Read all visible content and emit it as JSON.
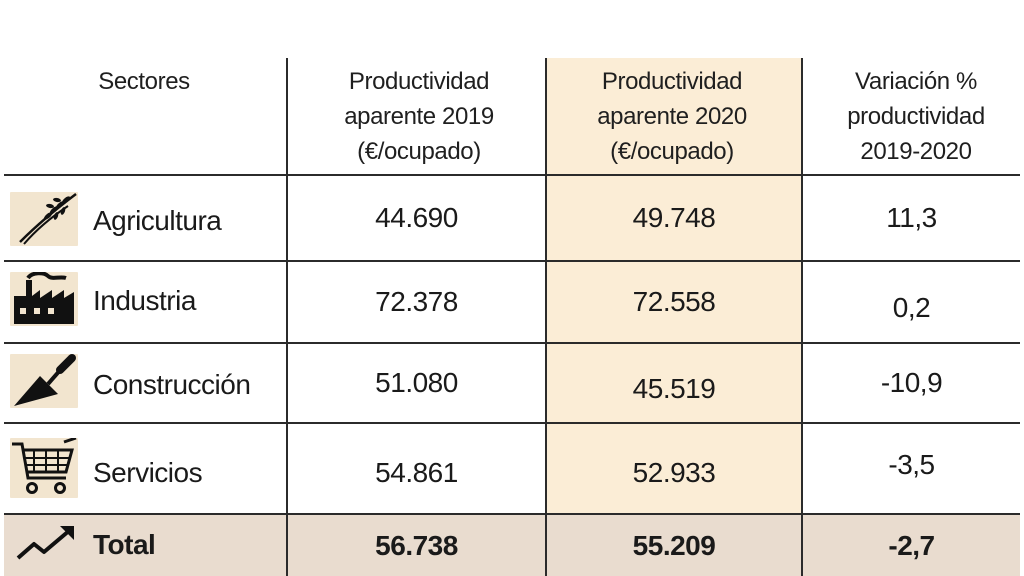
{
  "chart_data": {
    "type": "table",
    "columns": [
      "Sectores",
      "Productividad aparente 2019 (€/ocupado)",
      "Productividad aparente 2020 (€/ocupado)",
      "Variación % productividad 2019-2020"
    ],
    "header_lines": {
      "col0": [
        "Sectores"
      ],
      "col1": [
        "Productividad",
        "aparente 2019",
        "(€/ocupado)"
      ],
      "col2": [
        "Productividad",
        "aparente 2020",
        "(€/ocupado)"
      ],
      "col3": [
        "Variación %",
        "productividad",
        "2019-2020"
      ]
    },
    "rows": [
      {
        "sector": "Agricultura",
        "icon": "wheat-icon",
        "p2019": "44.690",
        "p2020": "49.748",
        "var": "11,3"
      },
      {
        "sector": "Industria",
        "icon": "factory-icon",
        "p2019": "72.378",
        "p2020": "72.558",
        "var": "0,2"
      },
      {
        "sector": "Construcción",
        "icon": "trowel-icon",
        "p2019": "51.080",
        "p2020": "45.519",
        "var": "-10,9"
      },
      {
        "sector": "Servicios",
        "icon": "shopping-cart-icon",
        "p2019": "54.861",
        "p2020": "52.933",
        "var": "-3,5"
      }
    ],
    "total": {
      "sector": "Total",
      "icon": "trend-up-icon",
      "p2019": "56.738",
      "p2020": "55.209",
      "var": "-2,7"
    },
    "highlight_color": "#fbedd6",
    "total_row_color": "#e9dccf",
    "icon_bg_color": "#f2e5cf"
  }
}
